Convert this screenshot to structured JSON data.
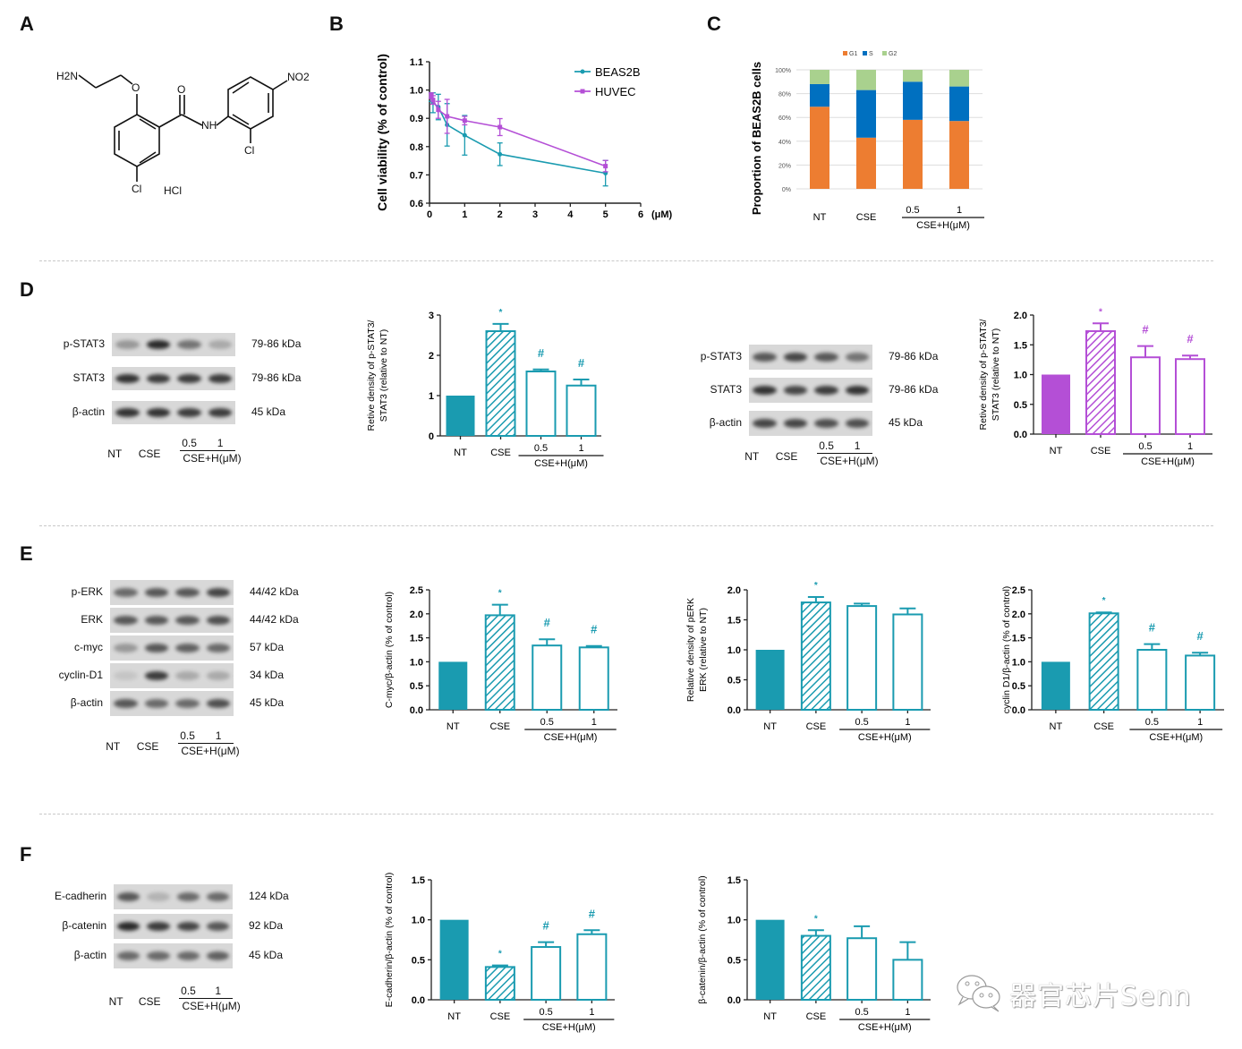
{
  "panels": {
    "A": {
      "letter": "A",
      "compound_labels": {
        "amine": "H2N",
        "oxygen": "O",
        "carbonyl_o": "O",
        "nh": "NH",
        "nitro": "NO2",
        "cl_ring1": "Cl",
        "cl_ring2": "Cl",
        "salt": "HCl"
      }
    },
    "B": {
      "letter": "B"
    },
    "C": {
      "letter": "C"
    },
    "D": {
      "letter": "D"
    },
    "E": {
      "letter": "E"
    },
    "F": {
      "letter": "F"
    }
  },
  "lanes": {
    "nt": "NT",
    "cse": "CSE",
    "dose1": "0.5",
    "dose2": "1",
    "group": "CSE+H(μM)"
  },
  "blots": {
    "D1": {
      "rows": [
        {
          "label": "p-STAT3",
          "kda": "79-86 kDa"
        },
        {
          "label": "STAT3",
          "kda": "79-86 kDa"
        },
        {
          "label": "β-actin",
          "kda": "45 kDa"
        }
      ]
    },
    "D2": {
      "rows": [
        {
          "label": "p-STAT3",
          "kda": "79-86 kDa"
        },
        {
          "label": "STAT3",
          "kda": "79-86 kDa"
        },
        {
          "label": "β-actin",
          "kda": "45 kDa"
        }
      ]
    },
    "E": {
      "rows": [
        {
          "label": "p-ERK",
          "kda": "44/42 kDa"
        },
        {
          "label": "ERK",
          "kda": "44/42 kDa"
        },
        {
          "label": "c-myc",
          "kda": "57 kDa"
        },
        {
          "label": "cyclin-D1",
          "kda": "34 kDa"
        },
        {
          "label": "β-actin",
          "kda": "45 kDa"
        }
      ]
    },
    "F": {
      "rows": [
        {
          "label": "E-cadherin",
          "kda": "124 kDa"
        },
        {
          "label": "β-catenin",
          "kda": "92 kDa"
        },
        {
          "label": "β-actin",
          "kda": "45 kDa"
        }
      ]
    }
  },
  "colors": {
    "teal": "#1a9bb0",
    "purple": "#b44fd6",
    "g1": "#ed7d31",
    "s": "#0070c0",
    "g2": "#a9d18e",
    "divider": "#c8c8c8"
  },
  "watermark": {
    "text": "器官芯片Senn",
    "icon": "wechat-icon"
  },
  "chart_data": [
    {
      "id": "B",
      "type": "line",
      "title": "",
      "xlabel": "(μM)",
      "ylabel": "Cell viability (% of control)",
      "xlim": [
        0,
        6
      ],
      "ylim": [
        0.6,
        1.1
      ],
      "xticks": [
        "0",
        "1",
        "2",
        "3",
        "4",
        "5",
        "6"
      ],
      "yticks": [
        "0.6",
        "0.7",
        "0.8",
        "0.9",
        "1.0",
        "1.1"
      ],
      "legend": [
        "BEAS2B",
        "HUVEC"
      ],
      "legend_position": "top-right",
      "series": [
        {
          "name": "BEAS2B",
          "color": "#1a9bb0",
          "x": [
            0.05,
            0.1,
            0.25,
            0.5,
            1,
            2,
            5
          ],
          "y": [
            0.975,
            0.955,
            0.94,
            0.877,
            0.84,
            0.773,
            0.706
          ],
          "err": [
            0.015,
            0.035,
            0.045,
            0.075,
            0.07,
            0.04,
            0.045
          ]
        },
        {
          "name": "HUVEC",
          "color": "#b44fd6",
          "x": [
            0.05,
            0.1,
            0.25,
            0.5,
            1,
            2,
            5
          ],
          "y": [
            0.98,
            0.965,
            0.93,
            0.907,
            0.892,
            0.869,
            0.731
          ],
          "err": [
            0.01,
            0.015,
            0.03,
            0.06,
            0.015,
            0.03,
            0.02
          ]
        }
      ]
    },
    {
      "id": "C",
      "type": "bar",
      "stacked": true,
      "ylabel": "Proportion of BEAS2B cells",
      "categories": [
        "NT",
        "CSE",
        "0.5",
        "1"
      ],
      "group_label": "CSE+H(μM)",
      "yticks": [
        "0%",
        "20%",
        "40%",
        "60%",
        "80%",
        "100%"
      ],
      "ylim": [
        0,
        100
      ],
      "grid": true,
      "legend_position": "top",
      "series": [
        {
          "name": "G1",
          "color": "#ed7d31",
          "values": [
            69,
            43,
            58,
            57
          ]
        },
        {
          "name": "S",
          "color": "#0070c0",
          "values": [
            19,
            40,
            32,
            29
          ]
        },
        {
          "name": "G2",
          "color": "#a9d18e",
          "values": [
            12,
            17,
            10,
            14
          ]
        }
      ]
    },
    {
      "id": "D1",
      "type": "bar",
      "color": "#1a9bb0",
      "ylabel": "Retive density of p-STAT3/ STAT3 (relative to NT)",
      "categories": [
        "NT",
        "CSE",
        "0.5",
        "1"
      ],
      "group_label": "CSE+H(μM)",
      "ylim": [
        0,
        3
      ],
      "yticks": [
        "0",
        "1",
        "2",
        "3"
      ],
      "values": [
        1.0,
        2.6,
        1.6,
        1.25
      ],
      "err": [
        0,
        0.18,
        0.05,
        0.15
      ],
      "annotations": [
        "",
        "*",
        "#",
        "#"
      ]
    },
    {
      "id": "D2",
      "type": "bar",
      "color": "#b44fd6",
      "ylabel": "Retive density of p-STAT3/ STAT3 (relative to NT)",
      "categories": [
        "NT",
        "CSE",
        "0.5",
        "1"
      ],
      "group_label": "CSE+H(μM)",
      "ylim": [
        0,
        2
      ],
      "yticks": [
        "0.0",
        "0.5",
        "1.0",
        "1.5",
        "2.0"
      ],
      "values": [
        1.0,
        1.73,
        1.29,
        1.26
      ],
      "err": [
        0,
        0.13,
        0.19,
        0.06
      ],
      "annotations": [
        "",
        "*",
        "#",
        "#"
      ]
    },
    {
      "id": "E1",
      "type": "bar",
      "color": "#1a9bb0",
      "ylabel": "C-myc/β-actin (% of control)",
      "categories": [
        "NT",
        "CSE",
        "0.5",
        "1"
      ],
      "group_label": "CSE+H(μM)",
      "ylim": [
        0,
        2.5
      ],
      "yticks": [
        "0.0",
        "0.5",
        "1.0",
        "1.5",
        "2.0",
        "2.5"
      ],
      "values": [
        1.0,
        1.97,
        1.34,
        1.3
      ],
      "err": [
        0,
        0.22,
        0.13,
        0.03
      ],
      "annotations": [
        "",
        "*",
        "#",
        "#"
      ]
    },
    {
      "id": "E2",
      "type": "bar",
      "color": "#1a9bb0",
      "ylabel": "Relative density of pERK ERK (relative to NT)",
      "categories": [
        "NT",
        "CSE",
        "0.5",
        "1"
      ],
      "group_label": "CSE+H(μM)",
      "ylim": [
        0,
        2
      ],
      "yticks": [
        "0.0",
        "0.5",
        "1.0",
        "1.5",
        "2.0"
      ],
      "values": [
        1.0,
        1.79,
        1.73,
        1.59
      ],
      "err": [
        0,
        0.09,
        0.04,
        0.1
      ],
      "annotations": [
        "",
        "*",
        "",
        ""
      ]
    },
    {
      "id": "E3",
      "type": "bar",
      "color": "#1a9bb0",
      "ylabel": "cyclin D1/β-actin (% of control)",
      "categories": [
        "NT",
        "CSE",
        "0.5",
        "1"
      ],
      "group_label": "CSE+H(μM)",
      "ylim": [
        0,
        2.5
      ],
      "yticks": [
        "0.0",
        "0.5",
        "1.0",
        "1.5",
        "2.0",
        "2.5"
      ],
      "values": [
        1.0,
        2.01,
        1.25,
        1.13
      ],
      "err": [
        0,
        0.02,
        0.12,
        0.06
      ],
      "annotations": [
        "",
        "*",
        "#",
        "#"
      ]
    },
    {
      "id": "F1",
      "type": "bar",
      "color": "#1a9bb0",
      "ylabel": "E-cadherin/β-actin (% of control)",
      "categories": [
        "NT",
        "CSE",
        "0.5",
        "1"
      ],
      "group_label": "CSE+H(μM)",
      "ylim": [
        0,
        1.5
      ],
      "yticks": [
        "0.0",
        "0.5",
        "1.0",
        "1.5"
      ],
      "values": [
        1.0,
        0.41,
        0.66,
        0.82
      ],
      "err": [
        0,
        0.02,
        0.06,
        0.05
      ],
      "annotations": [
        "",
        "*",
        "#",
        "#"
      ]
    },
    {
      "id": "F2",
      "type": "bar",
      "color": "#1a9bb0",
      "ylabel": "β-catenin/β-actin (% of control)",
      "categories": [
        "NT",
        "CSE",
        "0.5",
        "1"
      ],
      "group_label": "CSE+H(μM)",
      "ylim": [
        0,
        1.5
      ],
      "yticks": [
        "0.0",
        "0.5",
        "1.0",
        "1.5"
      ],
      "values": [
        1.0,
        0.8,
        0.77,
        0.5
      ],
      "err": [
        0,
        0.07,
        0.15,
        0.22
      ],
      "annotations": [
        "",
        "*",
        "",
        ""
      ]
    }
  ]
}
